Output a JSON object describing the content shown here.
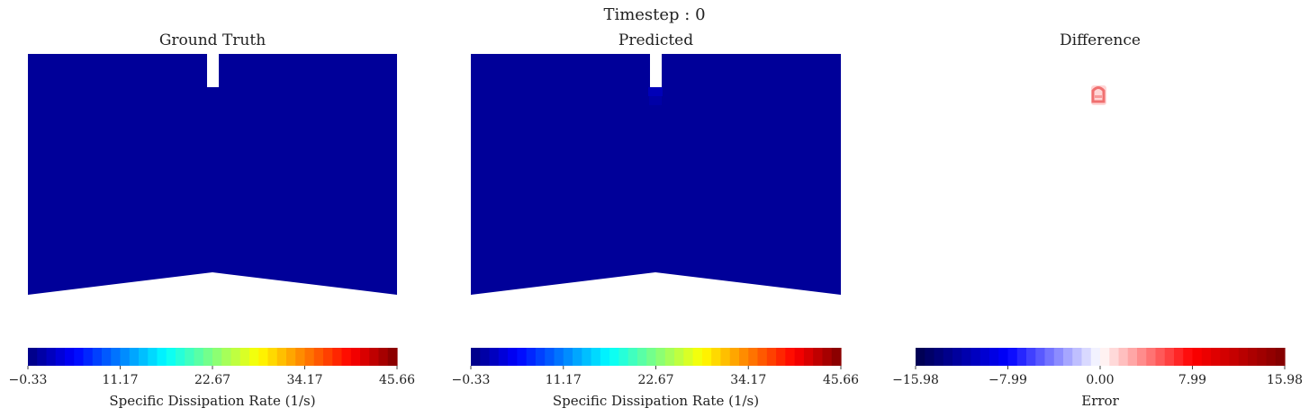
{
  "suptitle": "Timestep : 0",
  "chart_data": [
    {
      "type": "heatmap",
      "title": "Ground Truth",
      "field_value": -0.33,
      "colorbar": {
        "label": "Specific Dissipation Rate (1/s)",
        "min": -0.33,
        "max": 45.66,
        "ticks": [
          "−0.33",
          "11.17",
          "22.67",
          "34.17",
          "45.66"
        ],
        "colormap": "jet"
      }
    },
    {
      "type": "heatmap",
      "title": "Predicted",
      "field_value": -0.33,
      "colorbar": {
        "label": "Specific Dissipation Rate (1/s)",
        "min": -0.33,
        "max": 45.66,
        "ticks": [
          "−0.33",
          "11.17",
          "22.67",
          "34.17",
          "45.66"
        ],
        "colormap": "jet"
      }
    },
    {
      "type": "heatmap",
      "title": "Difference",
      "field_value": 0,
      "colorbar": {
        "label": "Error",
        "min": -15.98,
        "max": 15.98,
        "ticks": [
          "−15.98",
          "−7.99",
          "0.00",
          "7.99",
          "15.98"
        ],
        "colormap": "seismic"
      }
    }
  ],
  "colors": {
    "field": "#000099",
    "background": "#ffffff"
  }
}
